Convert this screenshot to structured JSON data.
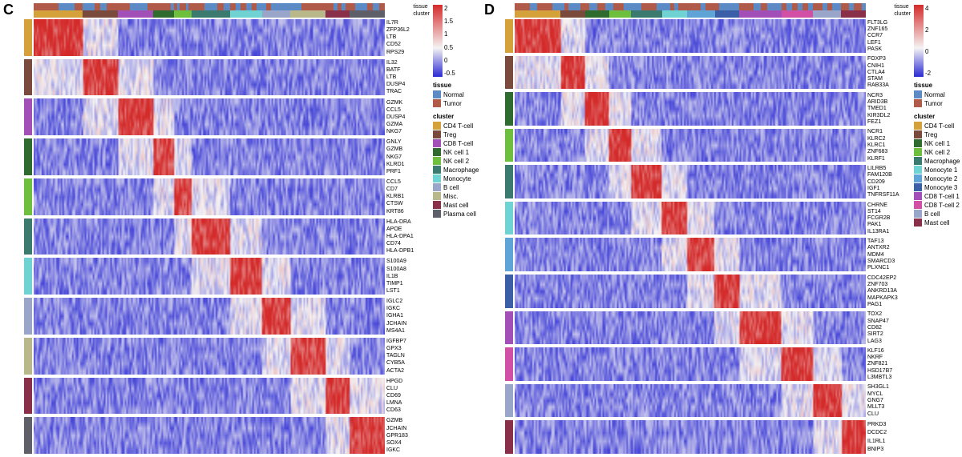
{
  "panels": [
    {
      "id": "C",
      "label": "C",
      "colorbar": {
        "ticks": [
          "2",
          "1.5",
          "1",
          "0.5",
          "0",
          "-0.5"
        ],
        "min": -0.7,
        "max": 2.2
      },
      "tissue_legend": {
        "title": "tissue",
        "items": [
          {
            "label": "Normal",
            "color": "#5b8ac5"
          },
          {
            "label": "Tumor",
            "color": "#b05a4a"
          }
        ]
      },
      "cluster_legend": {
        "title": "cluster",
        "items": [
          {
            "label": "CD4 T-cell",
            "color": "#d4a13a"
          },
          {
            "label": "Treg",
            "color": "#7a4a3d"
          },
          {
            "label": "CD8 T-cell",
            "color": "#a24fb8"
          },
          {
            "label": "NK cell 1",
            "color": "#2f6a2f"
          },
          {
            "label": "NK cell 2",
            "color": "#6fbf3f"
          },
          {
            "label": "Macrophage",
            "color": "#3b7a6f"
          },
          {
            "label": "Monocyte",
            "color": "#6fd3d3"
          },
          {
            "label": "B cell",
            "color": "#9aa6c9"
          },
          {
            "label": "Misc.",
            "color": "#b8b88a"
          },
          {
            "label": "Mast cell",
            "color": "#8a2f4a"
          },
          {
            "label": "Plasma cell",
            "color": "#5f5f6a"
          }
        ]
      },
      "annot_label_text": [
        "tissue",
        "cluster"
      ],
      "cluster_widths": [
        0.14,
        0.1,
        0.1,
        0.06,
        0.05,
        0.11,
        0.09,
        0.08,
        0.1,
        0.07,
        0.1
      ],
      "tissue_pattern": [
        [
          0.6,
          0.4
        ],
        [
          0.5,
          0.5
        ],
        [
          0.7,
          0.3
        ],
        [
          0.4,
          0.6
        ],
        [
          0.5,
          0.5
        ],
        [
          0.3,
          0.7
        ],
        [
          0.5,
          0.5
        ],
        [
          0.6,
          0.4
        ],
        [
          0.4,
          0.6
        ],
        [
          0.5,
          0.5
        ],
        [
          0.6,
          0.4
        ]
      ],
      "blocks": [
        {
          "cluster_index": 0,
          "genes": [
            "IL7R",
            "ZFP36L2",
            "LTB",
            "CD52",
            "RPS29"
          ]
        },
        {
          "cluster_index": 1,
          "genes": [
            "IL32",
            "BATF",
            "LTB",
            "DUSP4",
            "TRAC"
          ]
        },
        {
          "cluster_index": 2,
          "genes": [
            "GZMK",
            "CCL5",
            "DUSP4",
            "GZMA",
            "NKG7"
          ]
        },
        {
          "cluster_index": 3,
          "genes": [
            "GNLY",
            "GZMB",
            "NKG7",
            "KLRD1",
            "PRF1"
          ]
        },
        {
          "cluster_index": 4,
          "genes": [
            "CCL5",
            "CD7",
            "KLRB1",
            "CTSW",
            "KRT86"
          ]
        },
        {
          "cluster_index": 5,
          "genes": [
            "HLA-DRA",
            "APOE",
            "HLA-DPA1",
            "CD74",
            "HLA-DPB1"
          ]
        },
        {
          "cluster_index": 6,
          "genes": [
            "S100A9",
            "S100A8",
            "IL1B",
            "TIMP1",
            "LST1"
          ]
        },
        {
          "cluster_index": 7,
          "genes": [
            "IGLC2",
            "IGKC",
            "IGHA1",
            "JCHAIN",
            "MS4A1"
          ]
        },
        {
          "cluster_index": 8,
          "genes": [
            "IGFBP7",
            "GPX3",
            "TAGLN",
            "CYB5A",
            "ACTA2"
          ]
        },
        {
          "cluster_index": 9,
          "genes": [
            "HPGD",
            "CLU",
            "CD69",
            "LMNA",
            "CD63"
          ]
        },
        {
          "cluster_index": 10,
          "genes": [
            "GZMB",
            "JCHAIN",
            "GPR183",
            "SOX4",
            "IGKC"
          ]
        }
      ],
      "expr_colormap": {
        "low": "#2a2ad4",
        "mid": "#f5f3f3",
        "high": "#d42a2a"
      }
    },
    {
      "id": "D",
      "label": "D",
      "colorbar": {
        "ticks": [
          "4",
          "2",
          "0",
          "-2"
        ],
        "min": -3,
        "max": 5
      },
      "tissue_legend": {
        "title": "tissue",
        "items": [
          {
            "label": "Normal",
            "color": "#5b8ac5"
          },
          {
            "label": "Tumor",
            "color": "#b05a4a"
          }
        ]
      },
      "cluster_legend": {
        "title": "cluster",
        "items": [
          {
            "label": "CD4 T-cell",
            "color": "#d4a13a"
          },
          {
            "label": "Treg",
            "color": "#7a4a3d"
          },
          {
            "label": "NK cell 1",
            "color": "#2f6a2f"
          },
          {
            "label": "NK cell 2",
            "color": "#6fbf3f"
          },
          {
            "label": "Macrophage",
            "color": "#3b7a6f"
          },
          {
            "label": "Monocyte 1",
            "color": "#6fd3d3"
          },
          {
            "label": "Monocyte 2",
            "color": "#5fa4d6"
          },
          {
            "label": "Monocyte 3",
            "color": "#3a5fa6"
          },
          {
            "label": "CD8 T-cell 1",
            "color": "#a24fb8"
          },
          {
            "label": "CD8 T-cell 2",
            "color": "#d24fa6"
          },
          {
            "label": "B cell",
            "color": "#9aa6c9"
          },
          {
            "label": "Mast cell",
            "color": "#8a2f4a"
          }
        ]
      },
      "annot_label_text": [
        "tissue",
        "cluster"
      ],
      "cluster_widths": [
        0.13,
        0.07,
        0.07,
        0.06,
        0.09,
        0.07,
        0.08,
        0.07,
        0.12,
        0.09,
        0.08,
        0.07
      ],
      "tissue_pattern": [
        [
          0.5,
          0.5
        ],
        [
          0.6,
          0.4
        ],
        [
          0.4,
          0.6
        ],
        [
          0.5,
          0.5
        ],
        [
          0.7,
          0.3
        ],
        [
          0.5,
          0.5
        ],
        [
          0.4,
          0.6
        ],
        [
          0.6,
          0.4
        ],
        [
          0.5,
          0.5
        ],
        [
          0.4,
          0.6
        ],
        [
          0.5,
          0.5
        ],
        [
          0.6,
          0.4
        ]
      ],
      "blocks": [
        {
          "cluster_index": 0,
          "genes": [
            "FLT3LG",
            "ZNF165",
            "CCR7",
            "LEF1",
            "PASK"
          ]
        },
        {
          "cluster_index": 1,
          "genes": [
            "FOXP3",
            "CNIH1",
            "CTLA4",
            "STAM",
            "RAB33A"
          ]
        },
        {
          "cluster_index": 2,
          "genes": [
            "NCR3",
            "ARID3B",
            "TMED1",
            "KIR3DL2",
            "FEZ1"
          ]
        },
        {
          "cluster_index": 3,
          "genes": [
            "NCR1",
            "KLRC2",
            "KLRC1",
            "ZNF683",
            "KLRF1"
          ]
        },
        {
          "cluster_index": 4,
          "genes": [
            "LILRB5",
            "FAM120B",
            "CD209",
            "IGF1",
            "TNFRSF11A"
          ]
        },
        {
          "cluster_index": 5,
          "genes": [
            "CHRNE",
            "ST14",
            "FCGR2B",
            "PAK1",
            "IL13RA1"
          ]
        },
        {
          "cluster_index": 6,
          "genes": [
            "TAF13",
            "ANTXR2",
            "MDM4",
            "SMARCD3",
            "PLXNC1"
          ]
        },
        {
          "cluster_index": 7,
          "genes": [
            "CDC42EP2",
            "ZNF703",
            "ANKRD13A",
            "MAPKAPK3",
            "PAG1"
          ]
        },
        {
          "cluster_index": 8,
          "genes": [
            "TOX2",
            "SNAP47",
            "CD82",
            "SIRT2",
            "LAG3"
          ]
        },
        {
          "cluster_index": 9,
          "genes": [
            "KLF16",
            "NKRF",
            "ZNF821",
            "HSD17B7",
            "L3MBTL3"
          ]
        },
        {
          "cluster_index": 10,
          "genes": [
            "SH3GL1",
            "MYCL",
            "GNG7",
            "MLLT3",
            "CLU"
          ]
        },
        {
          "cluster_index": 11,
          "genes": [
            "PRKD3",
            "DCDC2",
            "IL1RL1",
            "BNIP3"
          ]
        }
      ],
      "expr_colormap": {
        "low": "#2a2ad4",
        "mid": "#f5f3f3",
        "high": "#d42a2a"
      }
    }
  ]
}
